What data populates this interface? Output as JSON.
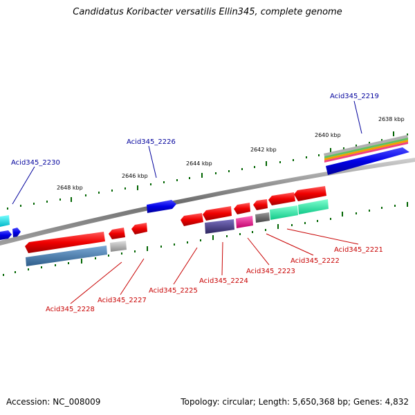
{
  "title": "Candidatus Koribacter versatilis Ellin345, complete genome",
  "footer": {
    "accession": "Accession: NC_008009",
    "topology": "Topology: circular; Length: 5,650,368 bp; Genes: 4,832"
  },
  "ticks": {
    "t2638": "2638 kbp",
    "t2640": "2640 kbp",
    "t2642": "2642 kbp",
    "t2644": "2644 kbp",
    "t2646": "2646 kbp",
    "t2648": "2648 kbp"
  },
  "genes_forward": {
    "g2219": "Acid345_2219",
    "g2226": "Acid345_2226",
    "g2230": "Acid345_2230"
  },
  "genes_reverse": {
    "g2221": "Acid345_2221",
    "g2222": "Acid345_2222",
    "g2223": "Acid345_2223",
    "g2224": "Acid345_2224",
    "g2225": "Acid345_2225",
    "g2227": "Acid345_2227",
    "g2228": "Acid345_2228"
  },
  "colors": {
    "backbone": "#808080",
    "forward_gene": "#0000ee",
    "reverse_gene": "#ee0000",
    "cds_cyan": "#00e0e0",
    "cds_green": "#20e8a0",
    "cds_steelblue": "#4682b4",
    "cds_purple": "#483d8b",
    "cds_magenta": "#ee1090",
    "cds_gray": "#b0b0b0",
    "label_blue": "#00009c",
    "label_red": "#c80000",
    "tick_green": "#006400"
  }
}
